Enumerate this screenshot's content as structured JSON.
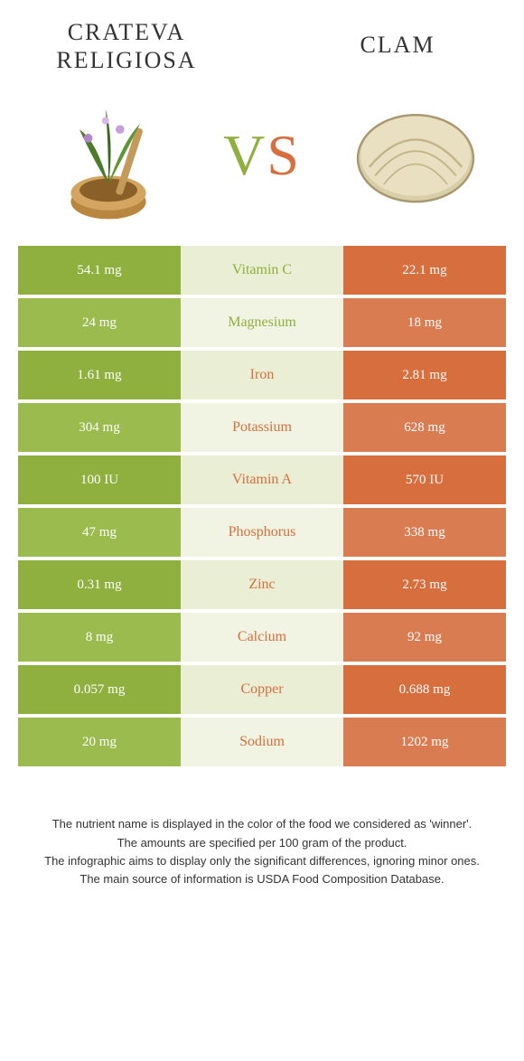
{
  "header": {
    "left_title": "Crateva religiosa",
    "right_title": "clam",
    "vs_v": "V",
    "vs_s": "S"
  },
  "colors": {
    "left_bg": "#8fb03e",
    "right_bg": "#d66e3e",
    "mid_bg": "#e9eed4",
    "left_alt_bg": "#9bbb4e",
    "right_alt_bg": "#da7c52",
    "mid_alt_bg": "#f1f4e2",
    "left_label": "#8fb03e",
    "right_label": "#d66e3e"
  },
  "nutrients": [
    {
      "label": "Vitamin C",
      "left": "54.1 mg",
      "right": "22.1 mg",
      "winner": "left"
    },
    {
      "label": "Magnesium",
      "left": "24 mg",
      "right": "18 mg",
      "winner": "left"
    },
    {
      "label": "Iron",
      "left": "1.61 mg",
      "right": "2.81 mg",
      "winner": "right"
    },
    {
      "label": "Potassium",
      "left": "304 mg",
      "right": "628 mg",
      "winner": "right"
    },
    {
      "label": "Vitamin A",
      "left": "100 IU",
      "right": "570 IU",
      "winner": "right"
    },
    {
      "label": "Phosphorus",
      "left": "47 mg",
      "right": "338 mg",
      "winner": "right"
    },
    {
      "label": "Zinc",
      "left": "0.31 mg",
      "right": "2.73 mg",
      "winner": "right"
    },
    {
      "label": "Calcium",
      "left": "8 mg",
      "right": "92 mg",
      "winner": "right"
    },
    {
      "label": "Copper",
      "left": "0.057 mg",
      "right": "0.688 mg",
      "winner": "right"
    },
    {
      "label": "Sodium",
      "left": "20 mg",
      "right": "1202 mg",
      "winner": "right"
    }
  ],
  "footnotes": [
    "The nutrient name is displayed in the color of the food we considered as 'winner'.",
    "The amounts are specified per 100 gram of the product.",
    "The infographic aims to display only the significant differences, ignoring minor ones.",
    "The main source of information is USDA Food Composition Database."
  ]
}
